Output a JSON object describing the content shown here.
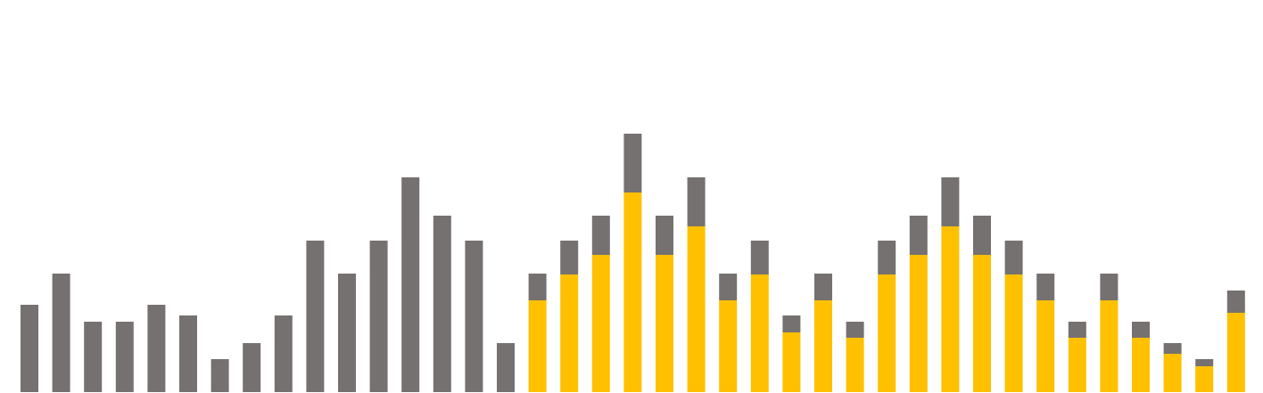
{
  "chart_data": {
    "type": "stacked-bar",
    "series": [
      {
        "color": "#ffc000",
        "values": [
          null,
          null,
          null,
          null,
          null,
          null,
          null,
          null,
          null,
          null,
          null,
          null,
          null,
          null,
          null,
          null,
          103,
          132,
          154,
          224,
          154,
          186,
          103,
          132,
          67,
          103,
          61,
          132,
          154,
          186,
          154,
          132,
          103,
          61,
          103,
          61,
          43,
          29,
          89
        ]
      },
      {
        "color": "#757170",
        "values": [
          98,
          133,
          79,
          79,
          98,
          86,
          37,
          55,
          86,
          170,
          133,
          170,
          241,
          198,
          170,
          55,
          30,
          38,
          44,
          66,
          44,
          55,
          30,
          38,
          19,
          30,
          18,
          38,
          44,
          55,
          44,
          38,
          30,
          18,
          30,
          18,
          12,
          8,
          25
        ]
      }
    ],
    "ylim": [
      0,
      440
    ]
  }
}
